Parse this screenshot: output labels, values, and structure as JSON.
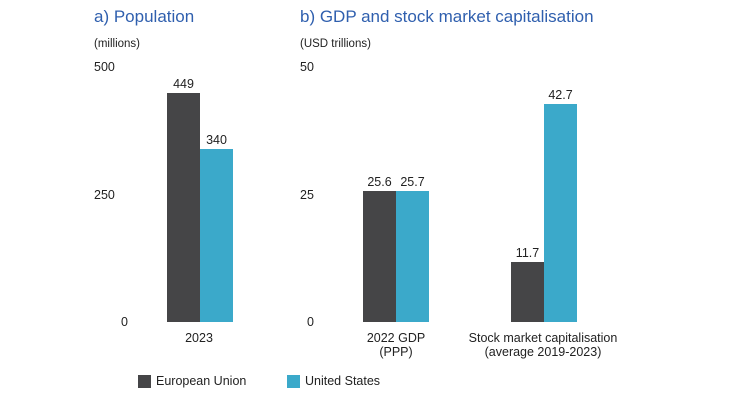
{
  "colors": {
    "eu": "#454547",
    "us": "#3ba9ca",
    "title": "#2f5fae"
  },
  "legend": [
    {
      "label": "European Union",
      "color": "#454547"
    },
    {
      "label": "United States",
      "color": "#3ba9ca"
    }
  ],
  "chart_data": [
    {
      "type": "bar",
      "title": "a)  Population",
      "ylabel": "(millions)",
      "ylim": [
        0,
        500
      ],
      "yticks": [
        "500",
        "250",
        "0"
      ],
      "categories": [
        "2023"
      ],
      "series": [
        {
          "name": "European Union",
          "values": [
            449
          ],
          "labels": [
            "449"
          ]
        },
        {
          "name": "United States",
          "values": [
            340
          ],
          "labels": [
            "340"
          ]
        }
      ]
    },
    {
      "type": "bar",
      "title": "b)  GDP and stock market capitalisation",
      "ylabel": "(USD trillions)",
      "ylim": [
        0,
        50
      ],
      "yticks": [
        "50",
        "25",
        "0"
      ],
      "categories": [
        [
          "2022 GDP",
          "(PPP)"
        ],
        [
          "Stock market capitalisation",
          "(average 2019-2023)"
        ]
      ],
      "series": [
        {
          "name": "European Union",
          "values": [
            25.6,
            11.7
          ],
          "labels": [
            "25.6",
            "11.7"
          ]
        },
        {
          "name": "United States",
          "values": [
            25.7,
            42.7
          ],
          "labels": [
            "25.7",
            "42.7"
          ]
        }
      ]
    }
  ]
}
